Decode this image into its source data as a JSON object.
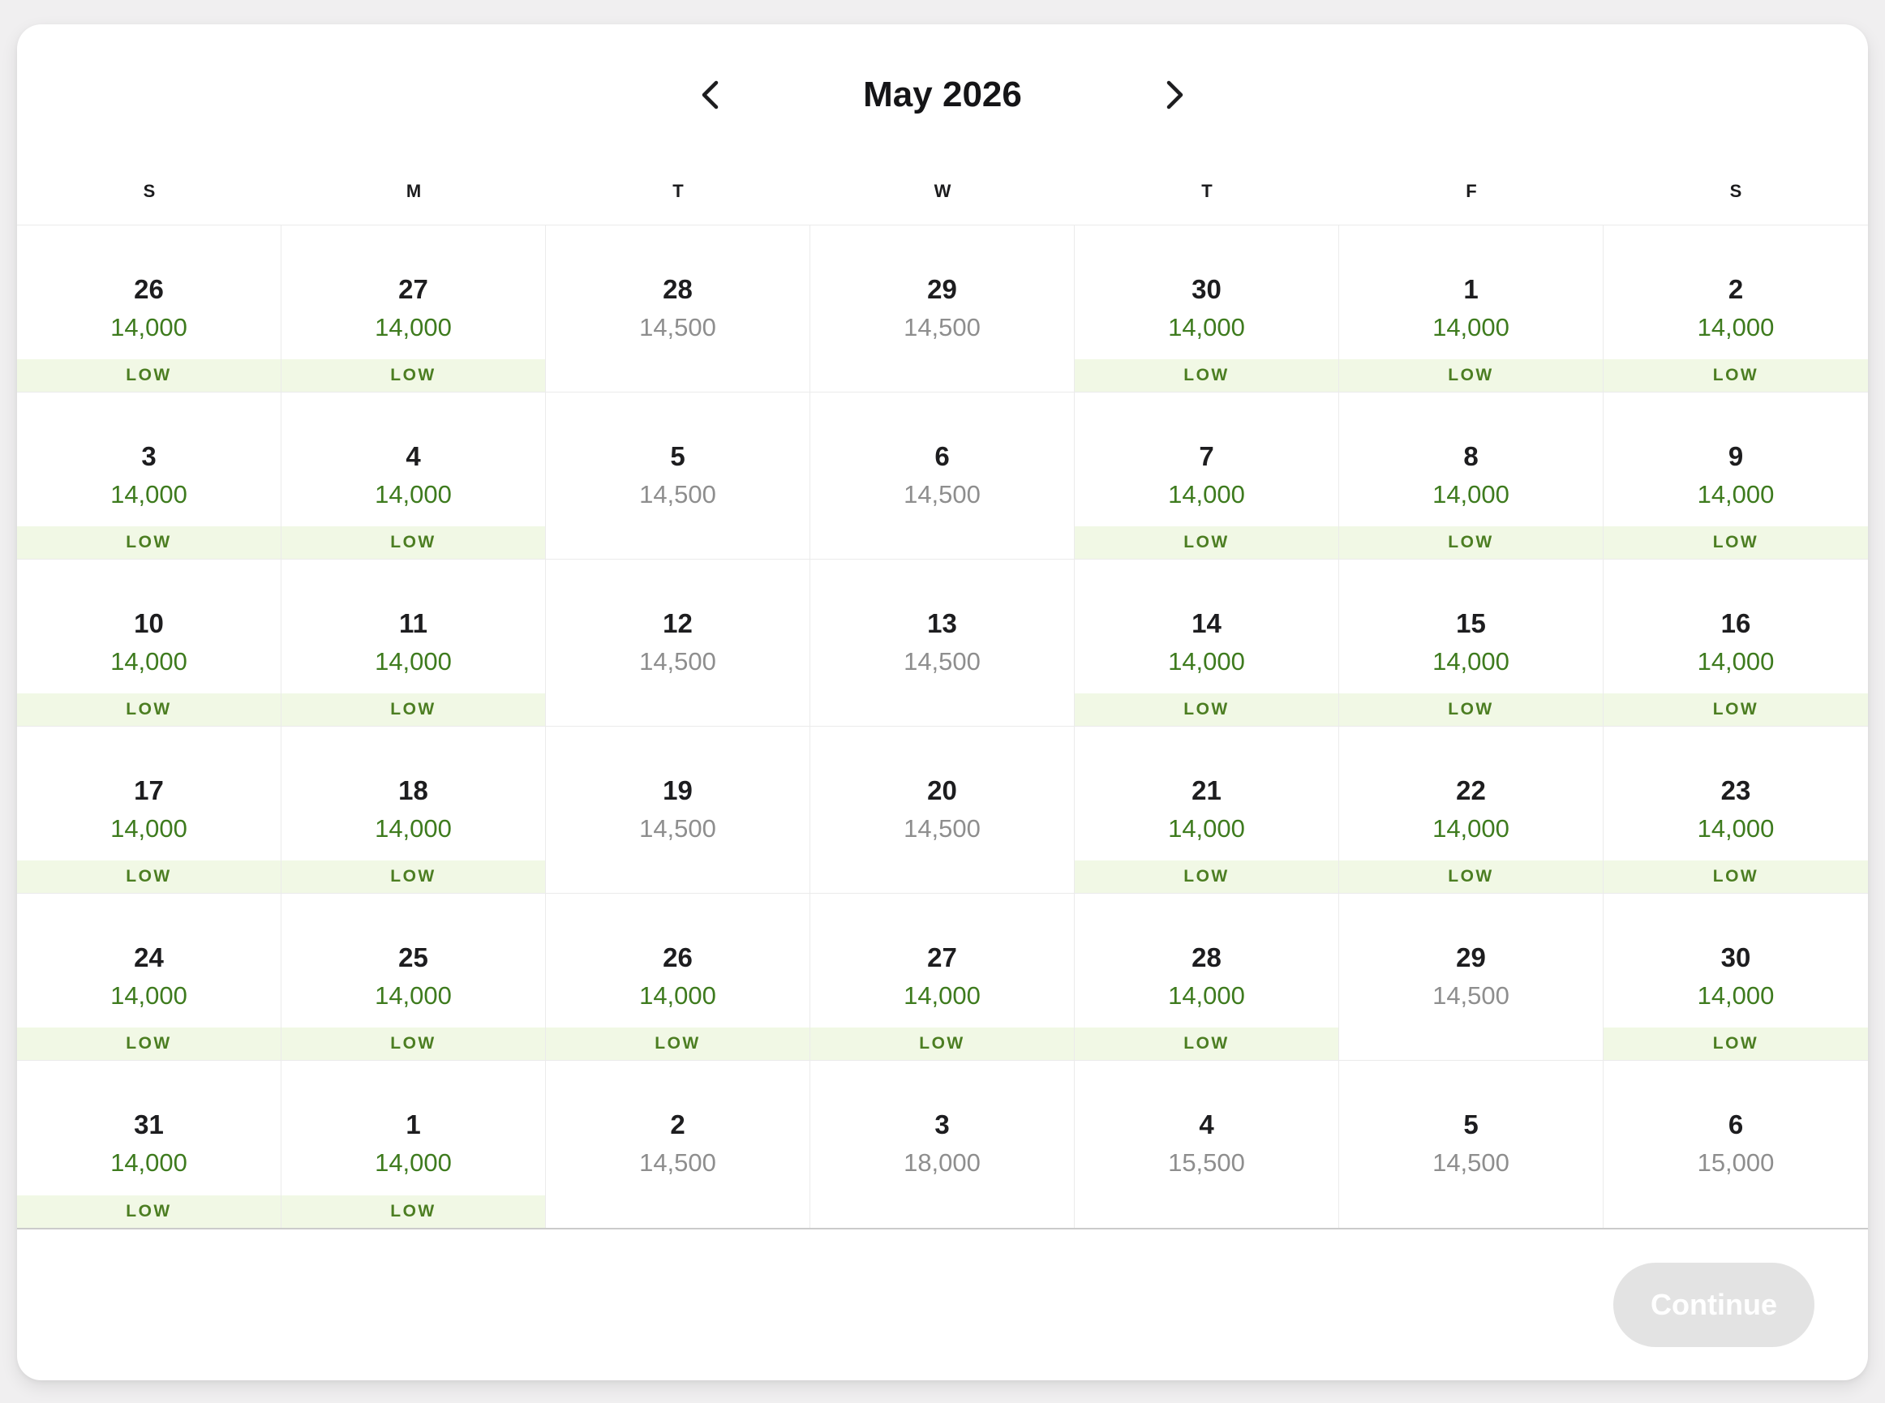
{
  "colors": {
    "page_bg": "#f0eff0",
    "grid_border": "#ebebeb",
    "divider": "#cbcbcb",
    "price_green": "#3e7b1e",
    "price_muted": "#8e8e8e",
    "badge_bg": "#f1f8e5",
    "badge_text": "#4c7e22",
    "button_bg": "#e3e3e3",
    "button_text": "#ffffff"
  },
  "header": {
    "month_title": "May 2026",
    "prev_icon": "chevron-left",
    "next_icon": "chevron-right"
  },
  "day_headers": [
    "S",
    "M",
    "T",
    "W",
    "T",
    "F",
    "S"
  ],
  "badge_label": "LOW",
  "weeks": [
    [
      {
        "day": "26",
        "price": "14,000",
        "low": true
      },
      {
        "day": "27",
        "price": "14,000",
        "low": true
      },
      {
        "day": "28",
        "price": "14,500",
        "low": false
      },
      {
        "day": "29",
        "price": "14,500",
        "low": false
      },
      {
        "day": "30",
        "price": "14,000",
        "low": true
      },
      {
        "day": "1",
        "price": "14,000",
        "low": true
      },
      {
        "day": "2",
        "price": "14,000",
        "low": true
      }
    ],
    [
      {
        "day": "3",
        "price": "14,000",
        "low": true
      },
      {
        "day": "4",
        "price": "14,000",
        "low": true
      },
      {
        "day": "5",
        "price": "14,500",
        "low": false
      },
      {
        "day": "6",
        "price": "14,500",
        "low": false
      },
      {
        "day": "7",
        "price": "14,000",
        "low": true
      },
      {
        "day": "8",
        "price": "14,000",
        "low": true
      },
      {
        "day": "9",
        "price": "14,000",
        "low": true
      }
    ],
    [
      {
        "day": "10",
        "price": "14,000",
        "low": true
      },
      {
        "day": "11",
        "price": "14,000",
        "low": true
      },
      {
        "day": "12",
        "price": "14,500",
        "low": false
      },
      {
        "day": "13",
        "price": "14,500",
        "low": false
      },
      {
        "day": "14",
        "price": "14,000",
        "low": true
      },
      {
        "day": "15",
        "price": "14,000",
        "low": true
      },
      {
        "day": "16",
        "price": "14,000",
        "low": true
      }
    ],
    [
      {
        "day": "17",
        "price": "14,000",
        "low": true
      },
      {
        "day": "18",
        "price": "14,000",
        "low": true
      },
      {
        "day": "19",
        "price": "14,500",
        "low": false
      },
      {
        "day": "20",
        "price": "14,500",
        "low": false
      },
      {
        "day": "21",
        "price": "14,000",
        "low": true
      },
      {
        "day": "22",
        "price": "14,000",
        "low": true
      },
      {
        "day": "23",
        "price": "14,000",
        "low": true
      }
    ],
    [
      {
        "day": "24",
        "price": "14,000",
        "low": true
      },
      {
        "day": "25",
        "price": "14,000",
        "low": true
      },
      {
        "day": "26",
        "price": "14,000",
        "low": true
      },
      {
        "day": "27",
        "price": "14,000",
        "low": true
      },
      {
        "day": "28",
        "price": "14,000",
        "low": true
      },
      {
        "day": "29",
        "price": "14,500",
        "low": false
      },
      {
        "day": "30",
        "price": "14,000",
        "low": true
      }
    ],
    [
      {
        "day": "31",
        "price": "14,000",
        "low": true
      },
      {
        "day": "1",
        "price": "14,000",
        "low": true
      },
      {
        "day": "2",
        "price": "14,500",
        "low": false
      },
      {
        "day": "3",
        "price": "18,000",
        "low": false
      },
      {
        "day": "4",
        "price": "15,500",
        "low": false
      },
      {
        "day": "5",
        "price": "14,500",
        "low": false
      },
      {
        "day": "6",
        "price": "15,000",
        "low": false
      }
    ]
  ],
  "footer": {
    "continue_label": "Continue"
  }
}
